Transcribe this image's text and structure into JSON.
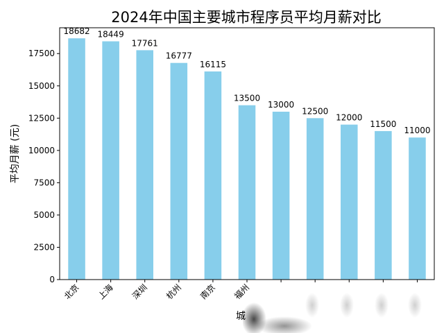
{
  "chart_data": {
    "type": "bar",
    "title": "2024年中国主要城市程序员平均月薪对比",
    "xlabel": "城",
    "ylabel": "平均月薪 (元)",
    "categories": [
      "北京",
      "上海",
      "深圳",
      "杭州",
      "南京",
      "福州",
      "",
      "",
      "",
      "",
      ""
    ],
    "values": [
      18682,
      18449,
      17761,
      16777,
      16115,
      13500,
      13000,
      12500,
      12000,
      11500,
      11000
    ],
    "ylim": [
      0,
      19500
    ],
    "yticks": [
      0,
      2500,
      5000,
      7500,
      10000,
      12500,
      15000,
      17500
    ],
    "grid": false,
    "legend": "none",
    "bar_color": "#87CEEB"
  }
}
